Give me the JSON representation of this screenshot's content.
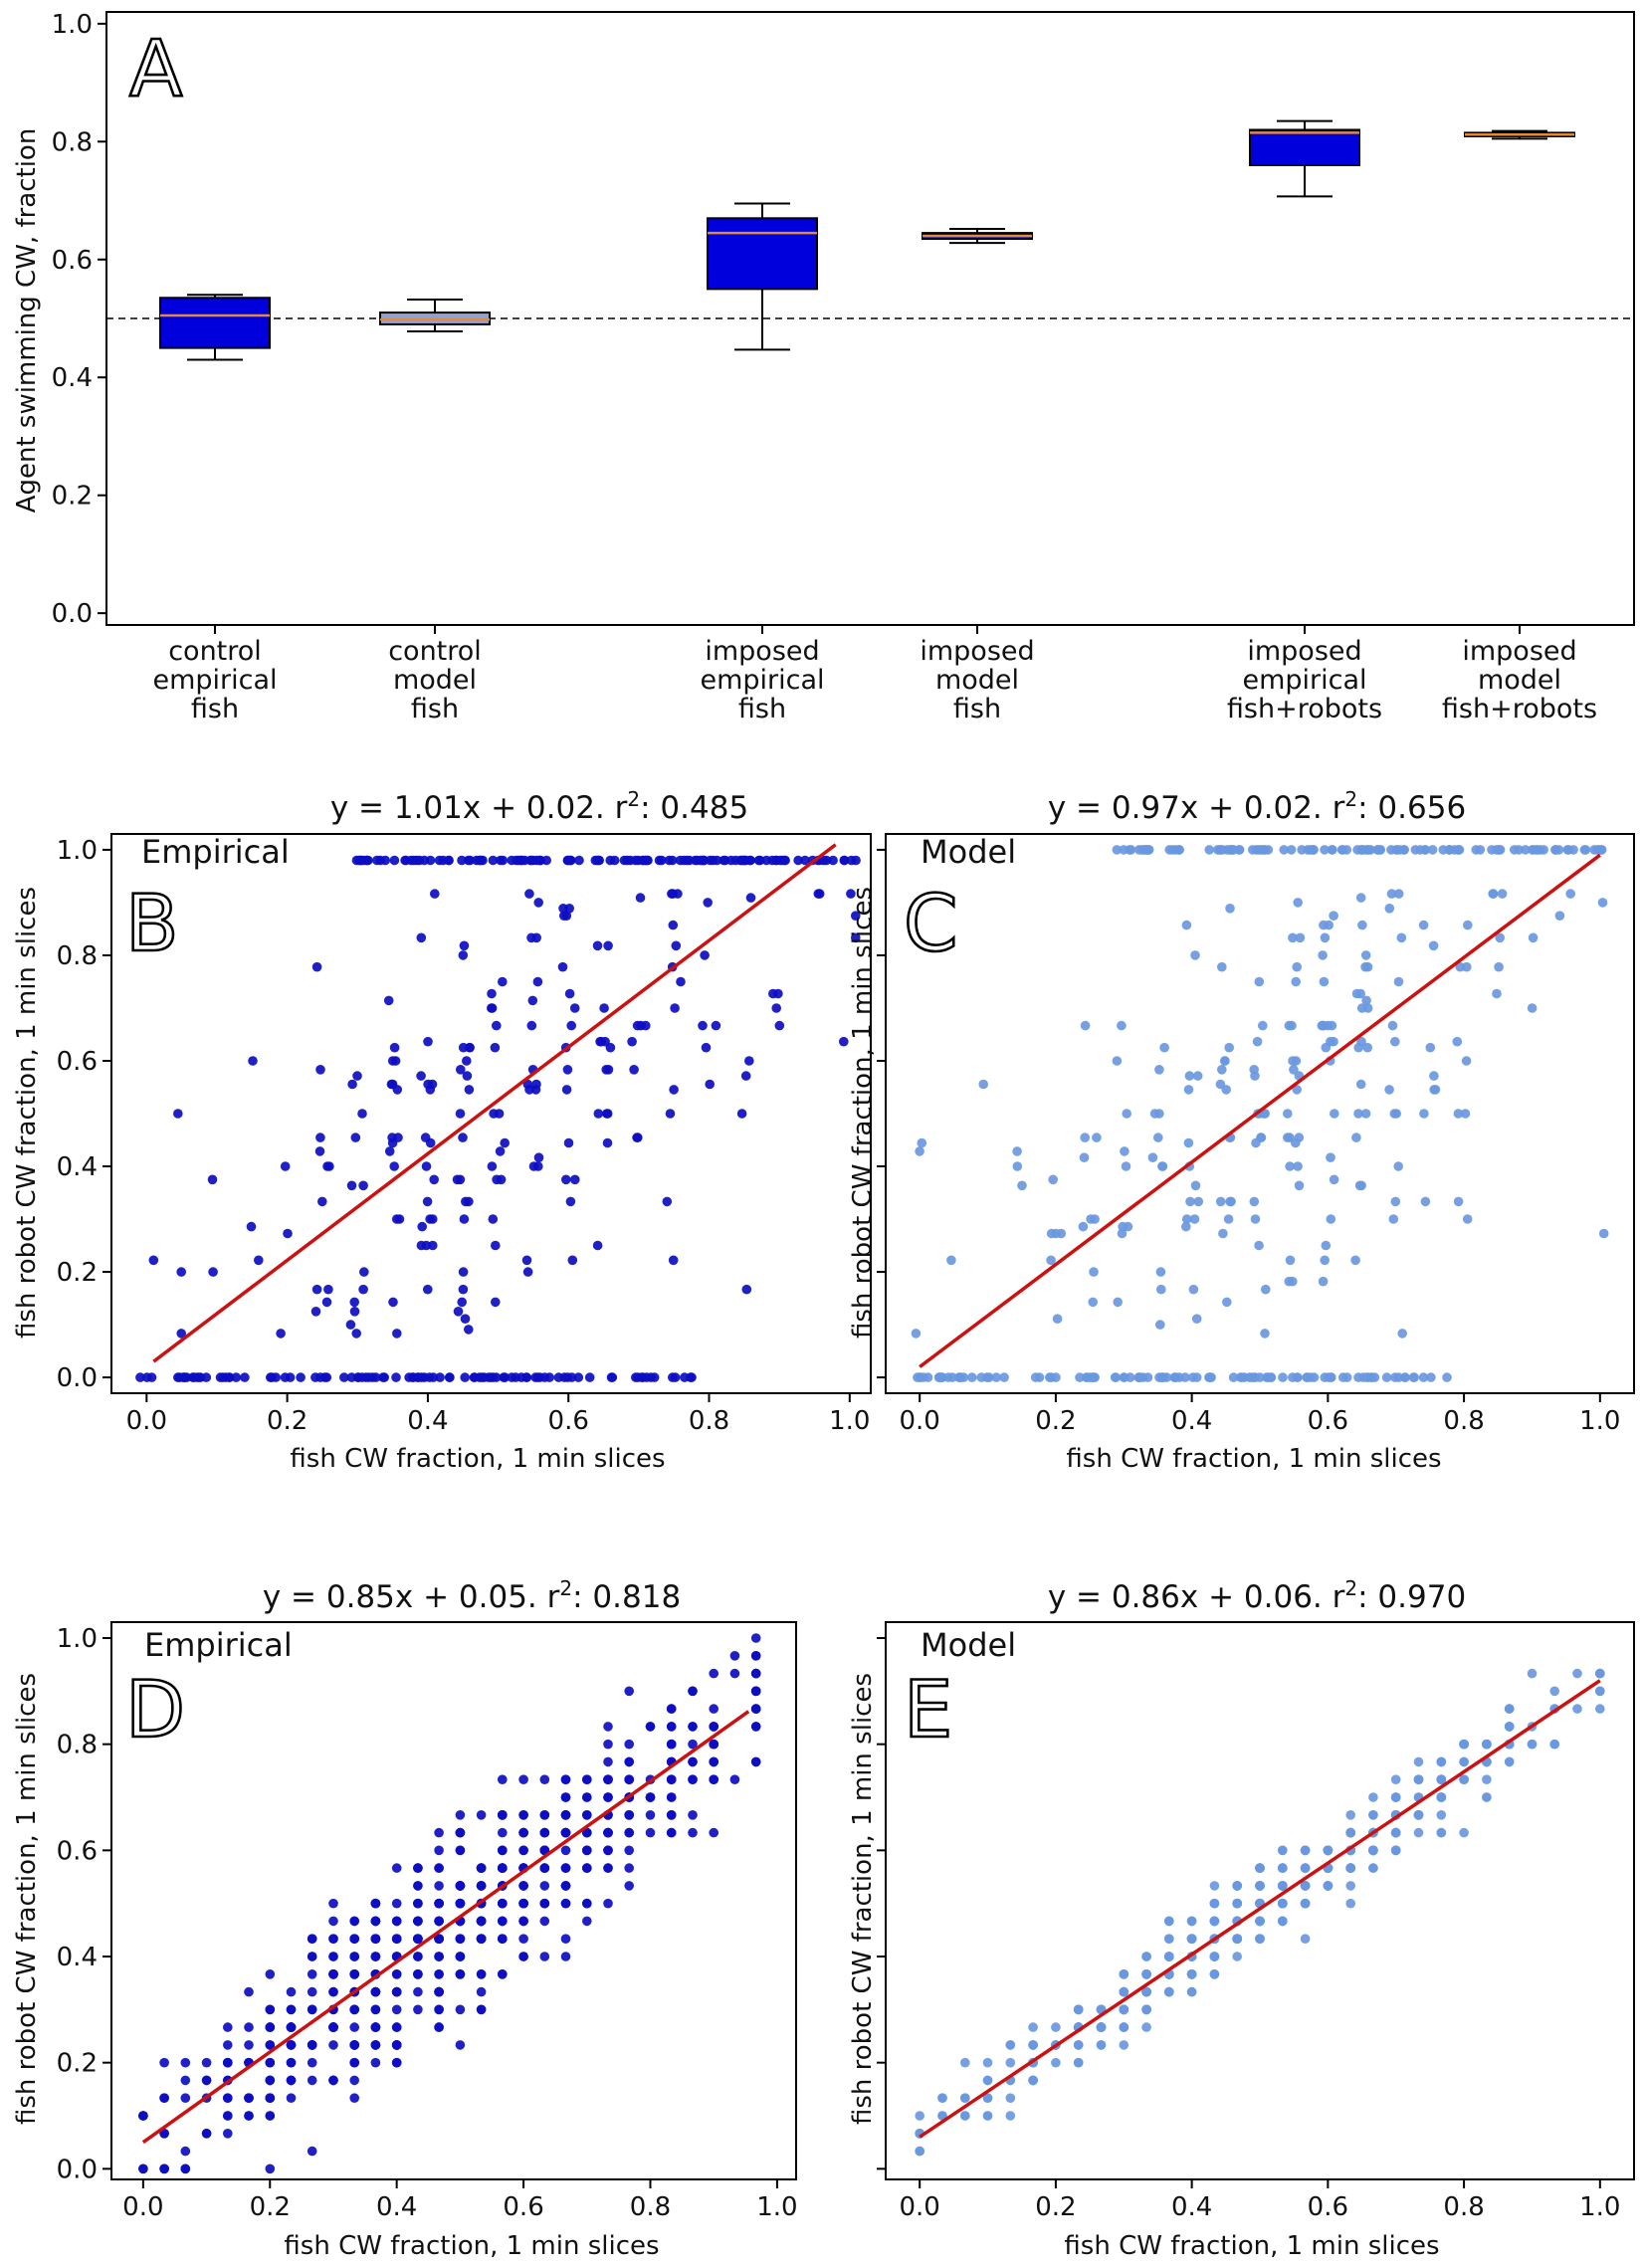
{
  "panels": {
    "A": {
      "letter": "A",
      "ylabel": "Agent swimming CW, fraction",
      "ylim": [
        0.0,
        1.0
      ],
      "yticks": [
        0.0,
        0.2,
        0.4,
        0.6,
        0.8,
        1.0
      ],
      "reference_line": 0.5
    },
    "B": {
      "letter": "B",
      "corner": "Empirical",
      "title_prefix": "y = 1.01x + 0.02. r",
      "title_sup": "2",
      "title_suffix": ": 0.485",
      "xlabel": "fish CW fraction, 1 min slices",
      "ylabel": "fish robot CW fraction, 1 min slices"
    },
    "C": {
      "letter": "C",
      "corner": "Model",
      "title_prefix": "y = 0.97x + 0.02. r",
      "title_sup": "2",
      "title_suffix": ": 0.656",
      "xlabel": "fish CW fraction, 1 min slices",
      "ylabel": "fish robot CW fraction, 1 min slices"
    },
    "D": {
      "letter": "D",
      "corner": "Empirical",
      "title_prefix": "y = 0.85x + 0.05. r",
      "title_sup": "2",
      "title_suffix": ": 0.818",
      "xlabel": "fish CW fraction, 1 min slices",
      "ylabel": "fish robot CW fraction, 1 min slices"
    },
    "E": {
      "letter": "E",
      "corner": "Model",
      "title_prefix": "y = 0.86x + 0.06. r",
      "title_sup": "2",
      "title_suffix": ": 0.970",
      "xlabel": "fish CW fraction, 1 min slices",
      "ylabel": "fish robot CW fraction, 1 min slices"
    }
  },
  "colors": {
    "empirical": "#0d0dc2",
    "model": "#6a98e0",
    "box_fill": "#0000dd",
    "median": "#e08a3a",
    "fit": "#cc1111"
  },
  "chart_data": [
    {
      "id": "A",
      "type": "box",
      "title": "",
      "xlabel": "",
      "ylabel": "Agent swimming CW, fraction",
      "ylim": [
        0.0,
        1.0
      ],
      "categories": [
        [
          "control",
          "empirical",
          "fish"
        ],
        [
          "control",
          "model",
          "fish"
        ],
        [
          "imposed",
          "empirical",
          "fish"
        ],
        [
          "imposed",
          "model",
          "fish"
        ],
        [
          "imposed",
          "empirical",
          "fish+robots"
        ],
        [
          "imposed",
          "model",
          "fish+robots"
        ]
      ],
      "boxes": [
        {
          "whisker_low": 0.43,
          "q1": 0.45,
          "median": 0.505,
          "q3": 0.535,
          "whisker_high": 0.54,
          "fill": "#0000dd"
        },
        {
          "whisker_low": 0.478,
          "q1": 0.49,
          "median": 0.498,
          "q3": 0.51,
          "whisker_high": 0.532,
          "fill": "#8ea2d6"
        },
        {
          "whisker_low": 0.447,
          "q1": 0.55,
          "median": 0.645,
          "q3": 0.67,
          "whisker_high": 0.695,
          "fill": "#0000dd"
        },
        {
          "whisker_low": 0.628,
          "q1": 0.635,
          "median": 0.64,
          "q3": 0.645,
          "whisker_high": 0.652,
          "fill": "#0000dd"
        },
        {
          "whisker_low": 0.707,
          "q1": 0.76,
          "median": 0.815,
          "q3": 0.82,
          "whisker_high": 0.835,
          "fill": "#0000dd"
        },
        {
          "whisker_low": 0.805,
          "q1": 0.809,
          "median": 0.812,
          "q3": 0.815,
          "whisker_high": 0.818,
          "fill": "#0000dd"
        }
      ],
      "reference_line": 0.5
    },
    {
      "id": "B",
      "type": "scatter",
      "series": "Empirical",
      "xlim": [
        -0.05,
        1.03
      ],
      "ylim": [
        -0.03,
        1.03
      ],
      "xticks": [
        0.0,
        0.2,
        0.4,
        0.6,
        0.8,
        1.0
      ],
      "yticks": [
        0.0,
        0.2,
        0.4,
        0.6,
        0.8,
        1.0
      ],
      "fit": {
        "slope": 1.01,
        "intercept": 0.02,
        "r2": 0.485,
        "x_range": [
          0.01,
          0.98
        ]
      },
      "n_points": 420,
      "seed": 11,
      "y_quantize": "ratio",
      "pile_top": 0.98,
      "pile_bottom": 0.0
    },
    {
      "id": "C",
      "type": "scatter",
      "series": "Model",
      "xlim": [
        -0.05,
        1.05
      ],
      "ylim": [
        -0.03,
        1.03
      ],
      "xticks": [
        0.0,
        0.2,
        0.4,
        0.6,
        0.8,
        1.0
      ],
      "yticks": [
        0.0,
        0.2,
        0.4,
        0.6,
        0.8,
        1.0
      ],
      "fit": {
        "slope": 0.97,
        "intercept": 0.02,
        "r2": 0.656,
        "x_range": [
          0.0,
          1.0
        ]
      },
      "n_points": 420,
      "seed": 23,
      "y_quantize": "ratio",
      "pile_top": 1.0,
      "pile_bottom": 0.0
    },
    {
      "id": "D",
      "type": "scatter",
      "series": "Empirical",
      "xlim": [
        -0.05,
        1.03
      ],
      "ylim": [
        -0.02,
        1.03
      ],
      "xticks": [
        0.0,
        0.2,
        0.4,
        0.6,
        0.8,
        1.0
      ],
      "yticks": [
        0.0,
        0.2,
        0.4,
        0.6,
        0.8,
        1.0
      ],
      "fit": {
        "slope": 0.85,
        "intercept": 0.05,
        "r2": 0.818,
        "x_range": [
          0.0,
          0.955
        ]
      },
      "n_points": 620,
      "seed": 37,
      "spread": 0.085
    },
    {
      "id": "E",
      "type": "scatter",
      "series": "Model",
      "xlim": [
        -0.05,
        1.05
      ],
      "ylim": [
        -0.02,
        1.03
      ],
      "xticks": [
        0.0,
        0.2,
        0.4,
        0.6,
        0.8,
        1.0
      ],
      "yticks": [
        0.0,
        0.2,
        0.4,
        0.6,
        0.8,
        1.0
      ],
      "fit": {
        "slope": 0.86,
        "intercept": 0.06,
        "r2": 0.97,
        "x_range": [
          0.0,
          1.0
        ]
      },
      "n_points": 560,
      "seed": 41,
      "spread": 0.035
    }
  ]
}
